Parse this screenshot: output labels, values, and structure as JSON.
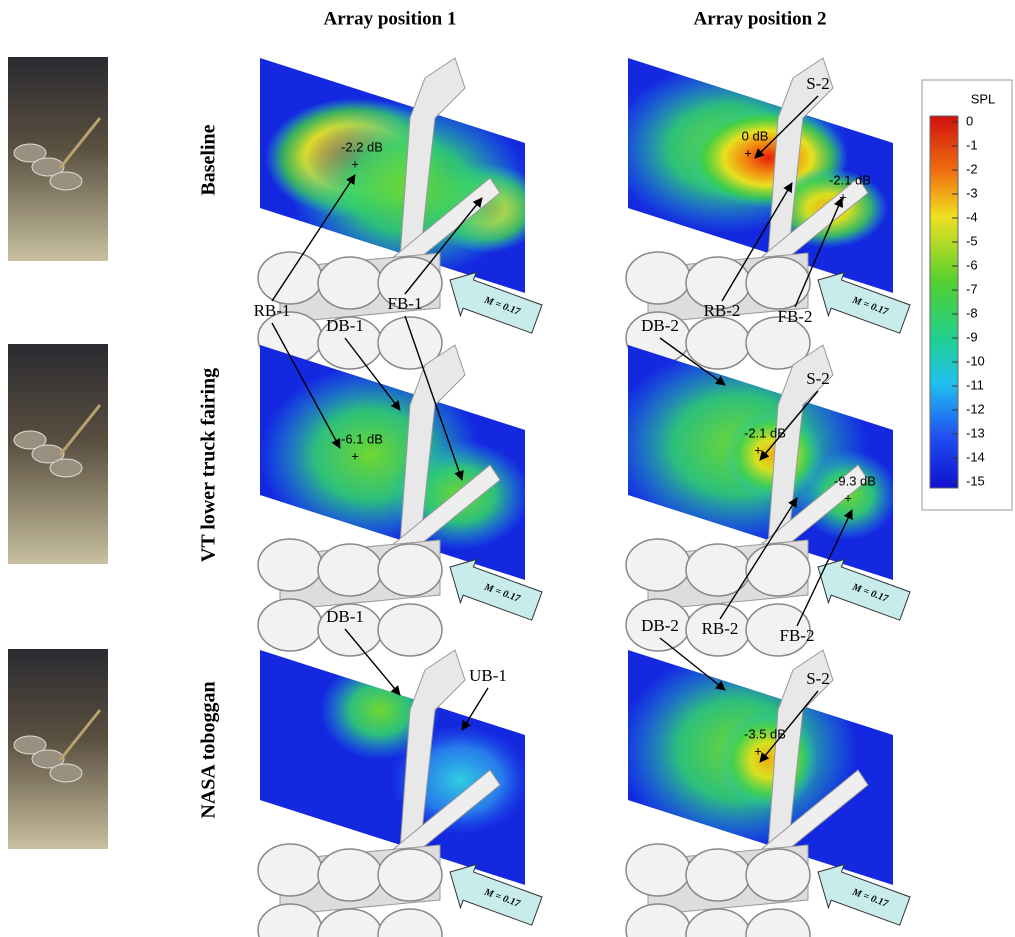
{
  "header": {
    "columns": [
      "Array position 1",
      "Array position 2"
    ]
  },
  "rows": [
    {
      "label": "Baseline",
      "panels": [
        {
          "levels": [
            "-2.2 dB"
          ]
        },
        {
          "levels": [
            "0 dB",
            "-2.1 dB"
          ]
        }
      ]
    },
    {
      "label": "VT lower truck fairing",
      "panels": [
        {
          "levels": [
            "-6.1 dB"
          ]
        },
        {
          "levels": [
            "-2.1 dB",
            "-9.3 dB"
          ]
        }
      ]
    },
    {
      "label": "NASA toboggan",
      "panels": [
        {
          "levels": []
        },
        {
          "levels": [
            "-3.5 dB"
          ]
        }
      ]
    }
  ],
  "callouts": [
    "S-2",
    "RB-2",
    "FB-2",
    "RB-1",
    "DB-1",
    "FB-1",
    "DB-2",
    "S-2",
    "RB-2",
    "FB-2",
    "DB-1",
    "UB-1",
    "DB-2",
    "S-2"
  ],
  "flow_label": "M = 0.17",
  "colorbar": {
    "title": "SPL",
    "ticks": [
      0,
      -1,
      -2,
      -3,
      -4,
      -5,
      -6,
      -7,
      -8,
      -9,
      -10,
      -11,
      -12,
      -13,
      -14,
      -15
    ]
  }
}
